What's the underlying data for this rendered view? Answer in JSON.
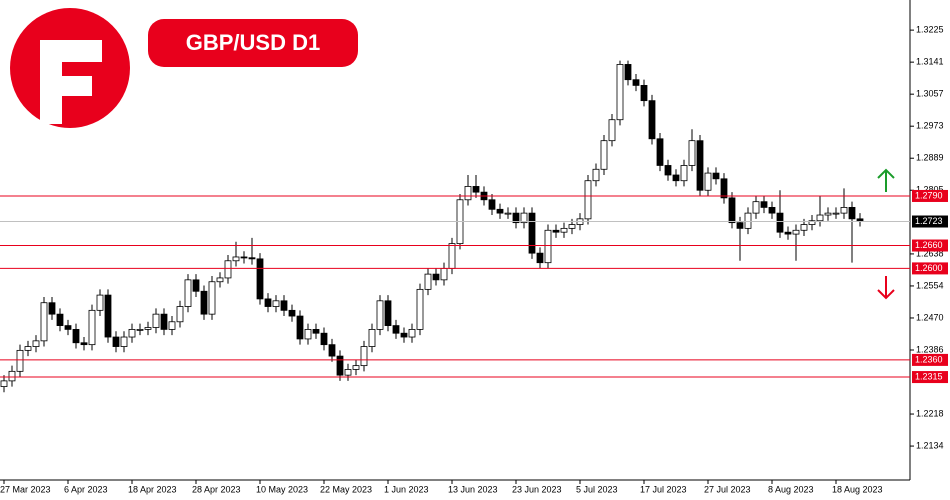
{
  "chart_data": {
    "type": "candlestick",
    "title": "GBP/USD D1",
    "categories": [
      "27 Mar 2023",
      null,
      null,
      null,
      null,
      null,
      null,
      null,
      "6 Apr 2023",
      null,
      null,
      null,
      null,
      null,
      null,
      null,
      "18 Apr 2023",
      null,
      null,
      null,
      null,
      null,
      null,
      null,
      "28 Apr 2023",
      null,
      null,
      null,
      null,
      null,
      null,
      null,
      "10 May 2023",
      null,
      null,
      null,
      null,
      null,
      null,
      null,
      "22 May 2023",
      null,
      null,
      null,
      null,
      null,
      null,
      null,
      "1 Jun 2023",
      null,
      null,
      null,
      null,
      null,
      null,
      null,
      "13 Jun 2023",
      null,
      null,
      null,
      null,
      null,
      null,
      null,
      "23 Jun 2023",
      null,
      null,
      null,
      null,
      null,
      null,
      null,
      "5 Jul 2023",
      null,
      null,
      null,
      null,
      null,
      null,
      null,
      "17 Jul 2023",
      null,
      null,
      null,
      null,
      null,
      null,
      null,
      "27 Jul 2023",
      null,
      null,
      null,
      null,
      null,
      null,
      null,
      "8 Aug 2023",
      null,
      null,
      null,
      null,
      null,
      null,
      null,
      "18 Aug 2023",
      null,
      null,
      null
    ],
    "open": [
      1.229,
      1.2305,
      1.233,
      1.2385,
      1.2395,
      1.241,
      1.251,
      1.248,
      1.245,
      1.244,
      1.2405,
      1.24,
      1.249,
      1.253,
      1.242,
      1.2395,
      1.242,
      1.244,
      1.244,
      1.2445,
      1.248,
      1.244,
      1.246,
      1.25,
      1.257,
      1.254,
      1.248,
      1.2565,
      1.2575,
      1.262,
      1.263,
      1.2628,
      1.2625,
      1.252,
      1.25,
      1.2515,
      1.249,
      1.2475,
      1.2415,
      1.244,
      1.243,
      1.24,
      1.237,
      1.232,
      1.2335,
      1.2345,
      1.2395,
      1.244,
      1.2515,
      1.245,
      1.243,
      1.242,
      1.244,
      1.2545,
      1.2585,
      1.257,
      1.26,
      1.2665,
      1.278,
      1.2815,
      1.28,
      1.278,
      1.2755,
      1.2745,
      1.2745,
      1.272,
      1.2745,
      1.264,
      1.2615,
      1.27,
      1.2695,
      1.2705,
      1.2715,
      1.273,
      1.283,
      1.286,
      1.2935,
      1.299,
      1.3135,
      1.3095,
      1.308,
      1.304,
      1.294,
      1.287,
      1.2845,
      1.283,
      1.287,
      1.2935,
      1.2805,
      1.285,
      1.2835,
      1.2785,
      1.272,
      1.2705,
      1.2745,
      1.2775,
      1.276,
      1.2745,
      1.2695,
      1.269,
      1.27,
      1.2715,
      1.2725,
      1.274,
      1.2745,
      1.2745,
      1.276,
      1.273
    ],
    "high": [
      1.232,
      1.2345,
      1.24,
      1.241,
      1.2425,
      1.2525,
      1.2525,
      1.2495,
      1.2465,
      1.2455,
      1.242,
      1.2505,
      1.2545,
      1.2545,
      1.2435,
      1.2435,
      1.2455,
      1.2455,
      1.246,
      1.2495,
      1.2495,
      1.2475,
      1.2515,
      1.2585,
      1.2585,
      1.2555,
      1.258,
      1.259,
      1.2635,
      1.267,
      1.2645,
      1.268,
      1.264,
      1.2535,
      1.253,
      1.253,
      1.2505,
      1.249,
      1.2455,
      1.2455,
      1.2445,
      1.2415,
      1.2385,
      1.235,
      1.236,
      1.241,
      1.2455,
      1.253,
      1.253,
      1.2465,
      1.2445,
      1.2455,
      1.256,
      1.26,
      1.26,
      1.2615,
      1.268,
      1.2795,
      1.2845,
      1.2845,
      1.2815,
      1.2795,
      1.277,
      1.276,
      1.276,
      1.276,
      1.276,
      1.2655,
      1.2715,
      1.2715,
      1.272,
      1.273,
      1.2745,
      1.2845,
      1.2875,
      1.295,
      1.3005,
      1.3145,
      1.3145,
      1.311,
      1.3095,
      1.3055,
      1.2955,
      1.2885,
      1.286,
      1.2885,
      1.2965,
      1.295,
      1.2865,
      1.2865,
      1.285,
      1.28,
      1.2735,
      1.276,
      1.279,
      1.279,
      1.2775,
      1.2805,
      1.271,
      1.2715,
      1.273,
      1.274,
      1.279,
      1.276,
      1.276,
      1.281,
      1.2775,
      1.2745
    ],
    "low": [
      1.2275,
      1.229,
      1.2315,
      1.237,
      1.238,
      1.2395,
      1.2465,
      1.2435,
      1.2425,
      1.239,
      1.2385,
      1.2385,
      1.2475,
      1.2405,
      1.238,
      1.238,
      1.2405,
      1.2425,
      1.2425,
      1.243,
      1.2425,
      1.2425,
      1.2445,
      1.2485,
      1.2525,
      1.2465,
      1.2465,
      1.255,
      1.256,
      1.2605,
      1.2613,
      1.261,
      1.2505,
      1.2485,
      1.2485,
      1.2475,
      1.246,
      1.24,
      1.24,
      1.2415,
      1.2385,
      1.2355,
      1.2305,
      1.2305,
      1.232,
      1.233,
      1.238,
      1.2425,
      1.2435,
      1.2415,
      1.2405,
      1.2405,
      1.2425,
      1.253,
      1.2555,
      1.2555,
      1.2585,
      1.265,
      1.2765,
      1.2785,
      1.2765,
      1.274,
      1.273,
      1.273,
      1.2705,
      1.2705,
      1.2625,
      1.26,
      1.26,
      1.268,
      1.268,
      1.269,
      1.27,
      1.2715,
      1.2815,
      1.2845,
      1.292,
      1.2975,
      1.308,
      1.3065,
      1.3025,
      1.2925,
      1.2855,
      1.283,
      1.2815,
      1.2815,
      1.2855,
      1.279,
      1.279,
      1.282,
      1.277,
      1.2705,
      1.262,
      1.269,
      1.273,
      1.2745,
      1.273,
      1.268,
      1.2675,
      1.262,
      1.2685,
      1.27,
      1.271,
      1.2725,
      1.273,
      1.273,
      1.2615,
      1.271
    ],
    "close": [
      1.2305,
      1.233,
      1.2385,
      1.2395,
      1.241,
      1.251,
      1.248,
      1.245,
      1.244,
      1.2405,
      1.24,
      1.249,
      1.253,
      1.242,
      1.2395,
      1.242,
      1.244,
      1.244,
      1.2445,
      1.248,
      1.244,
      1.246,
      1.25,
      1.257,
      1.254,
      1.248,
      1.2565,
      1.2575,
      1.262,
      1.263,
      1.2628,
      1.2625,
      1.252,
      1.25,
      1.2515,
      1.249,
      1.2475,
      1.2415,
      1.244,
      1.243,
      1.24,
      1.237,
      1.232,
      1.2335,
      1.2345,
      1.2395,
      1.244,
      1.2515,
      1.245,
      1.243,
      1.242,
      1.244,
      1.2545,
      1.2585,
      1.257,
      1.26,
      1.2665,
      1.278,
      1.2815,
      1.28,
      1.278,
      1.2755,
      1.2745,
      1.2745,
      1.272,
      1.2745,
      1.264,
      1.2615,
      1.27,
      1.2695,
      1.2705,
      1.2715,
      1.273,
      1.283,
      1.286,
      1.2935,
      1.299,
      1.3135,
      1.3095,
      1.308,
      1.304,
      1.294,
      1.287,
      1.2845,
      1.283,
      1.287,
      1.2935,
      1.2805,
      1.285,
      1.2835,
      1.2785,
      1.272,
      1.2705,
      1.2745,
      1.2775,
      1.276,
      1.2745,
      1.2695,
      1.269,
      1.27,
      1.2715,
      1.2725,
      1.274,
      1.2745,
      1.2745,
      1.276,
      1.273,
      1.2723
    ],
    "ylim": [
      1.2045,
      1.3304
    ],
    "yticks": [
      1.3225,
      1.3141,
      1.3057,
      1.2973,
      1.2889,
      1.2805,
      1.2638,
      1.2554,
      {
        "value": 1.247,
        "label": "1.2470"
      },
      1.2386,
      1.2218,
      1.2134
    ],
    "levels": [
      {
        "value": 1.279,
        "label": "1.2790"
      },
      {
        "value": 1.266,
        "label": "1.2660"
      },
      {
        "value": 1.26,
        "label": "1.2600"
      },
      {
        "value": 1.236,
        "label": "1.2360"
      },
      {
        "value": 1.2315,
        "label": "1.2315"
      }
    ],
    "level_color": "#e8001c",
    "current_price": 1.2723,
    "up_color": "#ffffff",
    "down_color": "#000000"
  }
}
